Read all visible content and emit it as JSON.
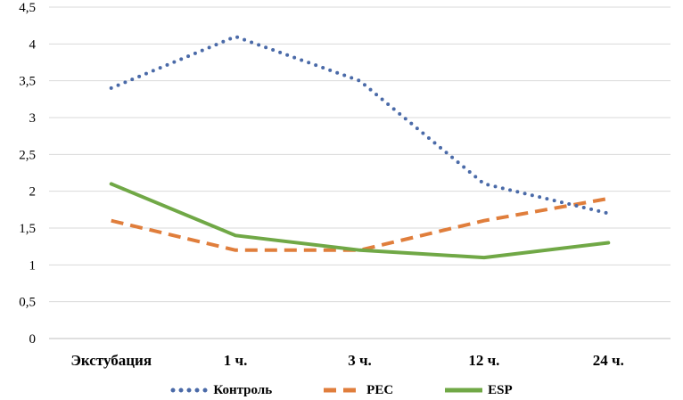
{
  "chart_data": {
    "type": "line",
    "title": "",
    "xlabel": "",
    "ylabel": "",
    "categories": [
      "Экстубация",
      "1 ч.",
      "3 ч.",
      "12 ч.",
      "24 ч."
    ],
    "ylim": [
      0,
      4.5
    ],
    "yticks": [
      "0",
      "0,5",
      "1",
      "1,5",
      "2",
      "2,5",
      "3",
      "3,5",
      "4",
      "4,5"
    ],
    "grid": true,
    "legend_position": "bottom",
    "series": [
      {
        "name": "Контроль",
        "values": [
          3.4,
          4.1,
          3.5,
          2.1,
          1.7
        ],
        "color": "#4a6aa8",
        "style": "dotted"
      },
      {
        "name": "PEC",
        "values": [
          1.6,
          1.2,
          1.2,
          1.6,
          1.9
        ],
        "color": "#e07e3c",
        "style": "dashed"
      },
      {
        "name": "ESP",
        "values": [
          2.1,
          1.4,
          1.2,
          1.1,
          1.3
        ],
        "color": "#70a846",
        "style": "solid"
      }
    ]
  }
}
